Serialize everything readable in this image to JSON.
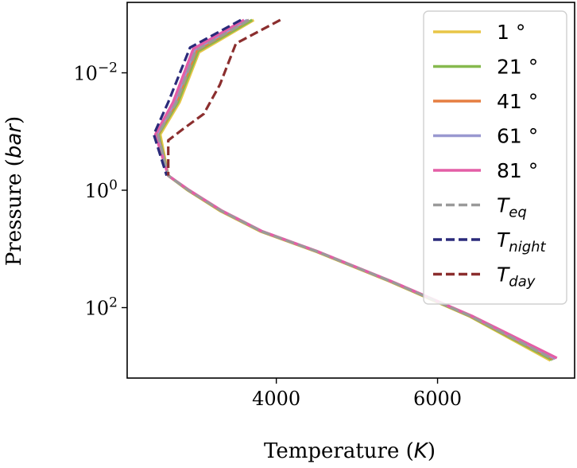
{
  "chart_data": {
    "type": "line",
    "title": "",
    "xlabel": "Temperature",
    "xlabel_unit": "K",
    "ylabel": "Pressure",
    "ylabel_unit": "bar",
    "xlim": [
      2150,
      7700
    ],
    "ylim_log10": [
      -3.2,
      3.2
    ],
    "y_inverted": true,
    "y_scale": "log",
    "x_ticks": [
      {
        "value": 4000,
        "label": "4000"
      },
      {
        "value": 6000,
        "label": "6000"
      }
    ],
    "y_ticks": [
      {
        "exp": -2,
        "base": "10",
        "sup": "−2"
      },
      {
        "exp": 0,
        "base": "10",
        "sup": "0"
      },
      {
        "exp": 2,
        "base": "10",
        "sup": "2"
      }
    ],
    "legend_position": "top-right",
    "series": [
      {
        "name": "1 °",
        "label": "1 °",
        "color": "#e8c547",
        "style": "solid",
        "points": [
          [
            3720,
            -2.9
          ],
          [
            3040,
            -2.35
          ],
          [
            2800,
            -1.5
          ],
          [
            2560,
            -0.95
          ],
          [
            2660,
            -0.25
          ],
          [
            2900,
            0.0
          ],
          [
            3300,
            0.35
          ],
          [
            3800,
            0.7
          ],
          [
            4500,
            1.05
          ],
          [
            5400,
            1.55
          ],
          [
            6400,
            2.15
          ],
          [
            7400,
            2.9
          ]
        ]
      },
      {
        "name": "21 °",
        "label": "21 °",
        "color": "#86b94e",
        "style": "solid",
        "points": [
          [
            3700,
            -2.9
          ],
          [
            3030,
            -2.37
          ],
          [
            2780,
            -1.5
          ],
          [
            2540,
            -0.95
          ],
          [
            2660,
            -0.25
          ],
          [
            2905,
            0.0
          ],
          [
            3310,
            0.35
          ],
          [
            3810,
            0.7
          ],
          [
            4510,
            1.05
          ],
          [
            5410,
            1.55
          ],
          [
            6410,
            2.15
          ],
          [
            7420,
            2.89
          ]
        ]
      },
      {
        "name": "41 °",
        "label": "41 °",
        "color": "#e57e41",
        "style": "solid",
        "points": [
          [
            3660,
            -2.9
          ],
          [
            3010,
            -2.38
          ],
          [
            2760,
            -1.5
          ],
          [
            2530,
            -0.95
          ],
          [
            2660,
            -0.25
          ],
          [
            2910,
            0.0
          ],
          [
            3315,
            0.35
          ],
          [
            3815,
            0.7
          ],
          [
            4515,
            1.05
          ],
          [
            5415,
            1.55
          ],
          [
            6420,
            2.15
          ],
          [
            7440,
            2.88
          ]
        ]
      },
      {
        "name": "61 °",
        "label": "61 °",
        "color": "#9998d0",
        "style": "solid",
        "points": [
          [
            3640,
            -2.9
          ],
          [
            2990,
            -2.4
          ],
          [
            2740,
            -1.5
          ],
          [
            2520,
            -0.95
          ],
          [
            2660,
            -0.25
          ],
          [
            2915,
            0.0
          ],
          [
            3320,
            0.35
          ],
          [
            3820,
            0.7
          ],
          [
            4520,
            1.05
          ],
          [
            5420,
            1.55
          ],
          [
            6430,
            2.15
          ],
          [
            7460,
            2.87
          ]
        ]
      },
      {
        "name": "81 °",
        "label": "81 °",
        "color": "#e45ea6",
        "style": "solid",
        "points": [
          [
            3600,
            -2.9
          ],
          [
            2970,
            -2.41
          ],
          [
            2720,
            -1.5
          ],
          [
            2500,
            -0.95
          ],
          [
            2660,
            -0.25
          ],
          [
            2920,
            0.0
          ],
          [
            3325,
            0.35
          ],
          [
            3825,
            0.7
          ],
          [
            4525,
            1.05
          ],
          [
            5425,
            1.55
          ],
          [
            6440,
            2.15
          ],
          [
            7480,
            2.86
          ]
        ]
      },
      {
        "name": "T_eq",
        "label_base": "T",
        "label_sub": "eq",
        "color": "#9a9a9a",
        "style": "dashed",
        "points": [
          [
            3660,
            -2.9
          ],
          [
            3000,
            -2.38
          ],
          [
            2760,
            -1.5
          ],
          [
            2530,
            -0.95
          ],
          [
            2660,
            -0.25
          ],
          [
            2910,
            0.0
          ],
          [
            3315,
            0.35
          ],
          [
            3815,
            0.7
          ],
          [
            4515,
            1.05
          ],
          [
            5415,
            1.55
          ],
          [
            6420,
            2.15
          ],
          [
            7440,
            2.88
          ]
        ]
      },
      {
        "name": "T_night",
        "label_base": "T",
        "label_sub": "night",
        "color": "#2a2a7a",
        "style": "dashed",
        "points": [
          [
            3560,
            -2.9
          ],
          [
            2930,
            -2.43
          ],
          [
            2660,
            -1.5
          ],
          [
            2480,
            -0.95
          ],
          [
            2640,
            -0.25
          ]
        ]
      },
      {
        "name": "T_day",
        "label_base": "T",
        "label_sub": "day",
        "color": "#8b2e2e",
        "style": "dashed",
        "points": [
          [
            4050,
            -2.9
          ],
          [
            3500,
            -2.5
          ],
          [
            3300,
            -1.8
          ],
          [
            3100,
            -1.3
          ],
          [
            2850,
            -1.05
          ],
          [
            2660,
            -0.85
          ],
          [
            2660,
            -0.25
          ]
        ]
      }
    ]
  }
}
